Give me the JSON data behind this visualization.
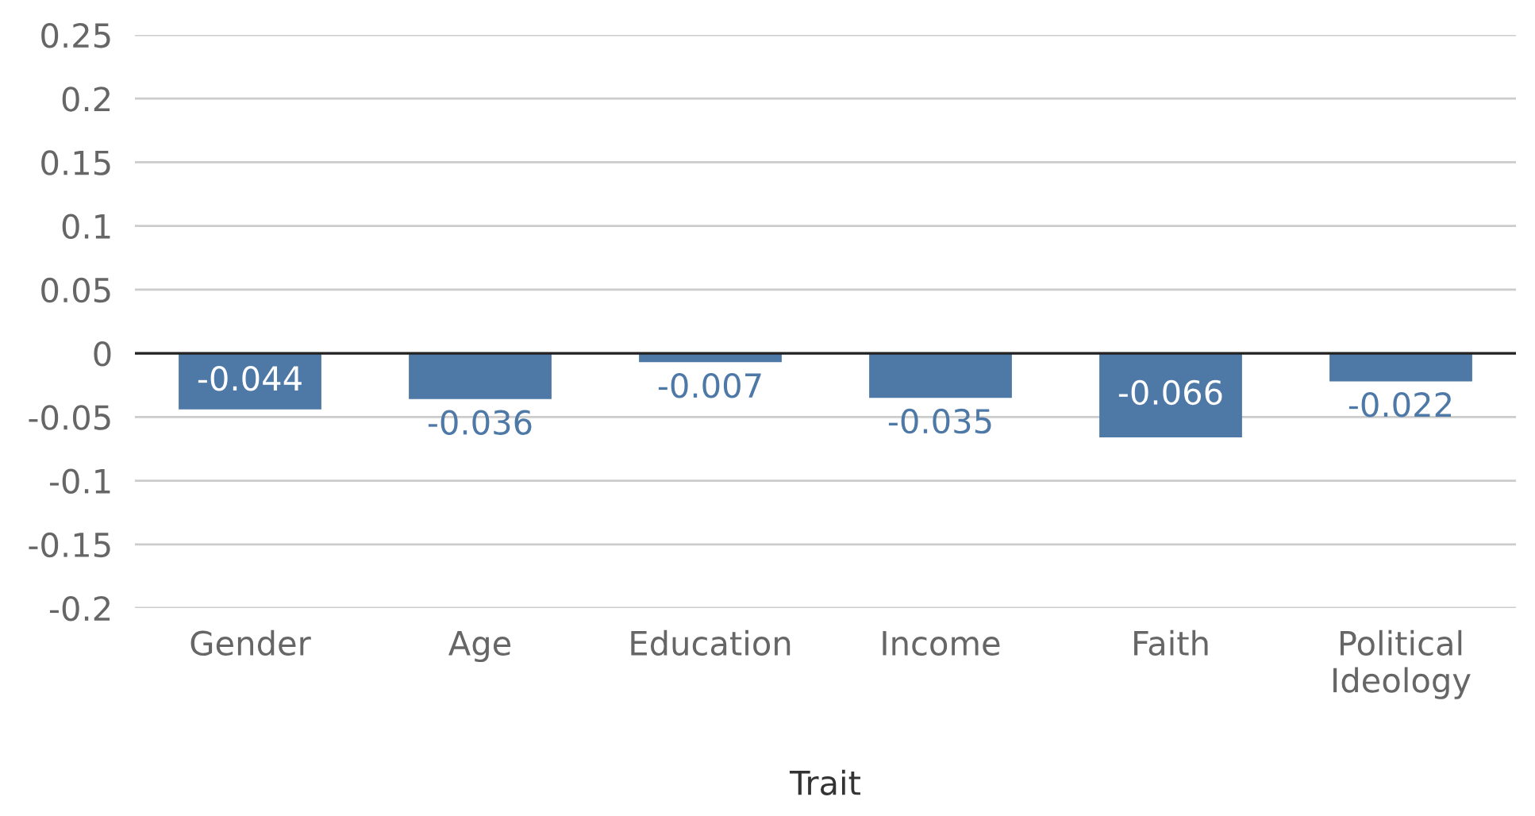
{
  "chart_data": {
    "type": "bar",
    "xlabel": "Trait",
    "categories": [
      "Gender",
      "Age",
      "Education",
      "Income",
      "Faith",
      "Political\nIdeology"
    ],
    "values": [
      -0.044,
      -0.036,
      -0.007,
      -0.035,
      -0.066,
      -0.022
    ],
    "color": "#4e79a7",
    "ylim": [
      -0.2,
      0.25
    ],
    "yticks": [
      -0.2,
      -0.15,
      -0.1,
      -0.05,
      0,
      0.05,
      0.1,
      0.15,
      0.2,
      0.25
    ],
    "grid": "y",
    "data_labels": true,
    "legend": false
  }
}
